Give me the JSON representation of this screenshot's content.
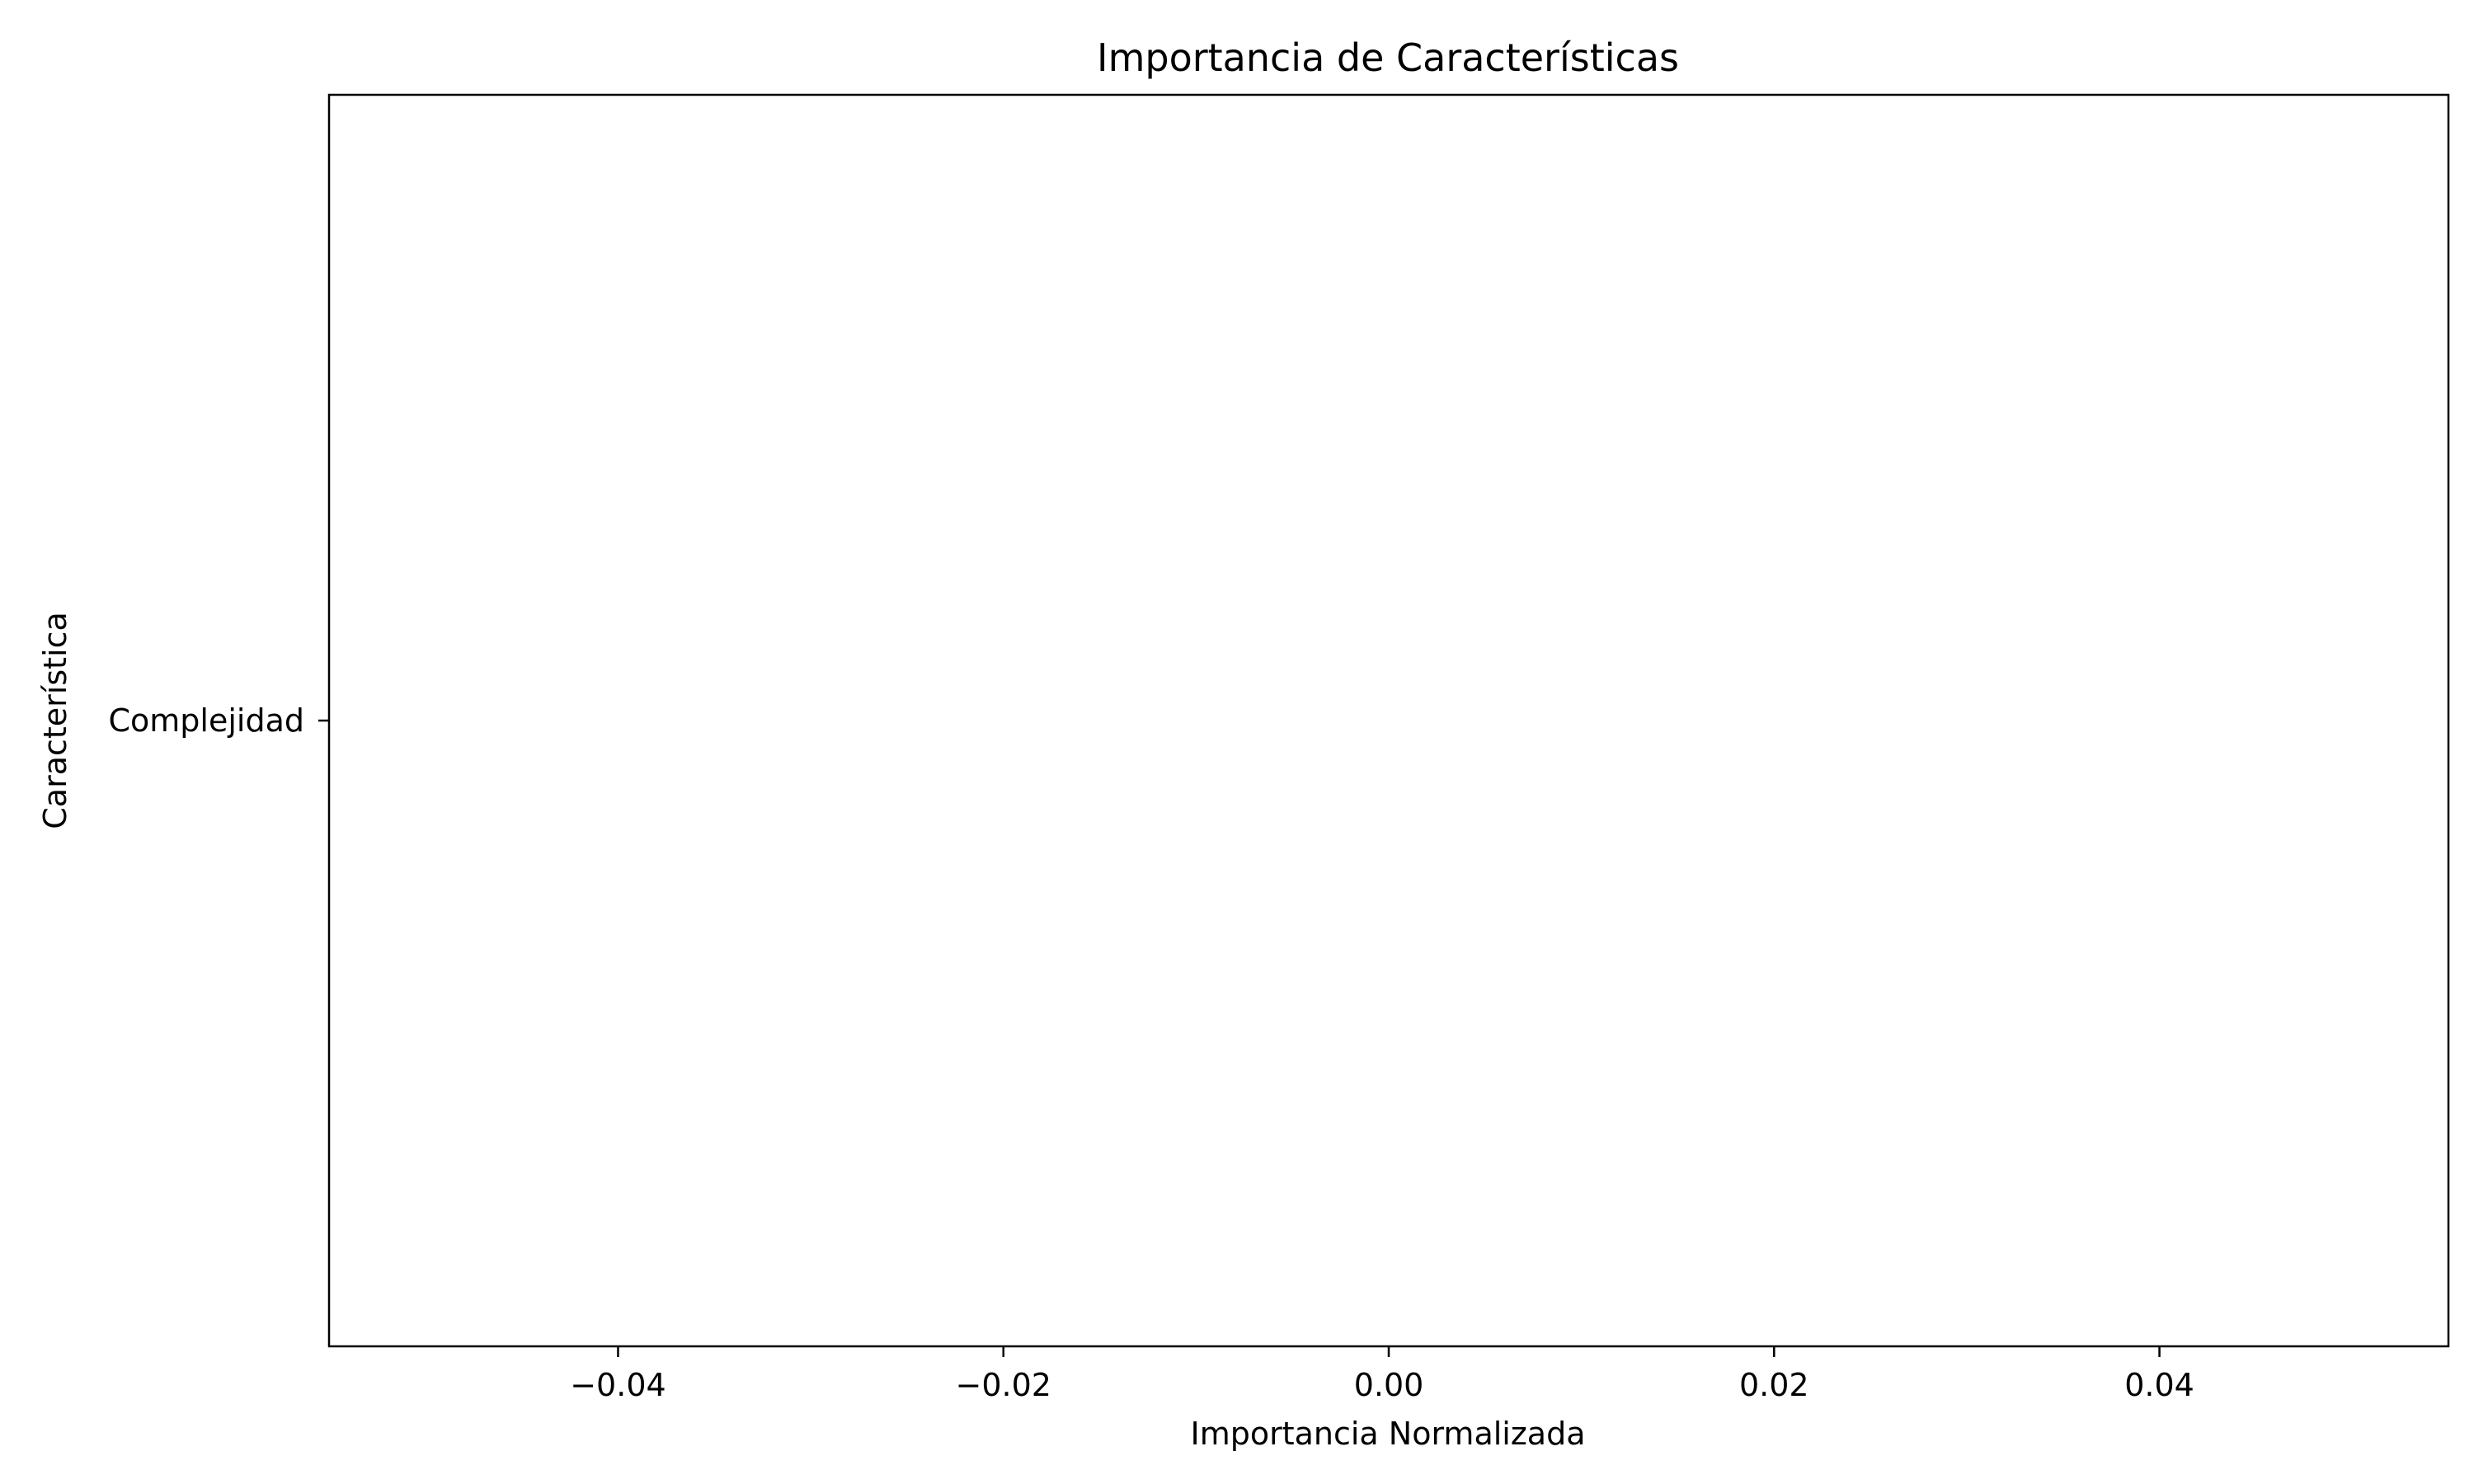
{
  "chart_data": {
    "type": "bar",
    "orientation": "horizontal",
    "title": "Importancia de Características",
    "xlabel": "Importancia Normalizada",
    "ylabel": "Característica",
    "categories": [
      "Complejidad"
    ],
    "values": [
      0.0
    ],
    "xlim": [
      -0.055,
      0.055
    ],
    "xticks": [
      -0.04,
      -0.02,
      0.0,
      0.02,
      0.04
    ],
    "xtick_labels": [
      "−0.04",
      "−0.02",
      "0.00",
      "0.02",
      "0.04"
    ],
    "grid": false,
    "legend": false
  }
}
